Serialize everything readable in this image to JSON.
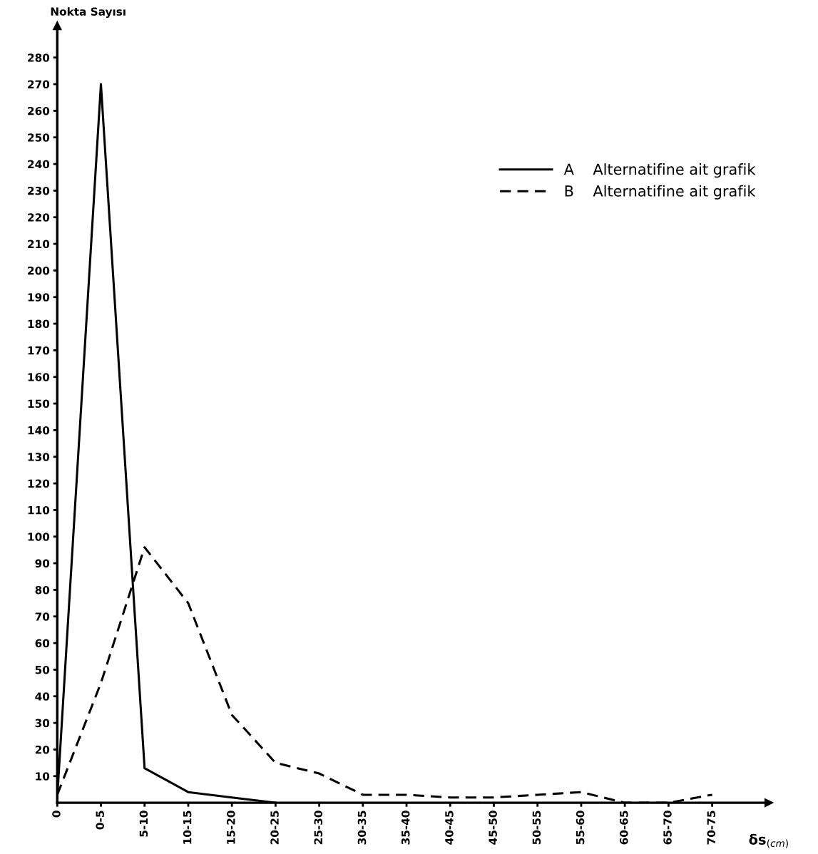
{
  "chart_data": {
    "type": "line",
    "ylabel": "Nokta Sayısı",
    "xlabel": "δs$_{(cm)}$",
    "categories": [
      "0",
      "0-5",
      "5-10",
      "10-15",
      "15-20",
      "20-25",
      "25-30",
      "30-35",
      "35-40",
      "40-45",
      "45-50",
      "50-55",
      "55-60",
      "60-65",
      "65-70",
      "70-75"
    ],
    "ylim": [
      0,
      292
    ],
    "yticks": [
      10,
      20,
      30,
      40,
      50,
      60,
      70,
      80,
      90,
      100,
      110,
      120,
      130,
      140,
      150,
      160,
      170,
      180,
      190,
      200,
      210,
      220,
      230,
      240,
      250,
      260,
      270,
      280
    ],
    "grid": false,
    "legend": "top right",
    "series": [
      {
        "name": "A    Alternatifine ait grafik",
        "color": "#000000",
        "line_style": "solid",
        "values": [
          2,
          270,
          13,
          4,
          2,
          0,
          null,
          null,
          null,
          null,
          null,
          null,
          null,
          null,
          null,
          null
        ]
      },
      {
        "name": "B    Alternatifine ait grafik",
        "color": "#000000",
        "line_style": "dashed",
        "values": [
          3,
          45,
          96,
          75,
          33,
          15,
          11,
          3,
          3,
          2,
          2,
          3,
          4,
          0,
          0,
          3
        ]
      }
    ]
  }
}
